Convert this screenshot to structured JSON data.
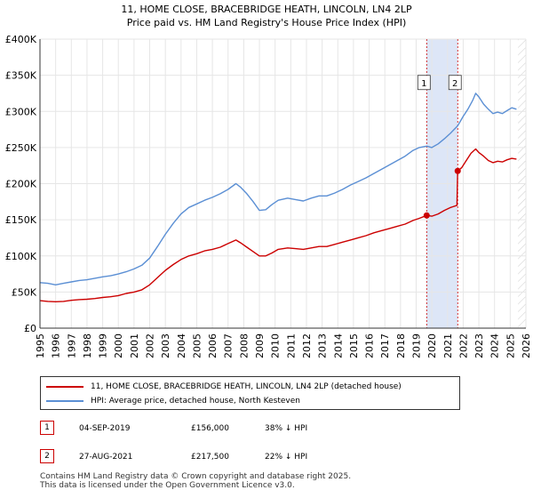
{
  "title_line1": "11, HOME CLOSE, BRACEBRIDGE HEATH, LINCOLN, LN4 2LP",
  "title_line2": "Price paid vs. HM Land Registry's House Price Index (HPI)",
  "colors": {
    "property": "#cc0000",
    "hpi": "#5b8fd4",
    "highlight": "#dde6f7",
    "marker_border": "#cc0000"
  },
  "chart_data": {
    "type": "line",
    "xlim": [
      1995,
      2026
    ],
    "ylim": [
      0,
      400000
    ],
    "y_ticks": [
      0,
      50000,
      100000,
      150000,
      200000,
      250000,
      300000,
      350000,
      400000
    ],
    "y_tick_labels": [
      "£0",
      "£50K",
      "£100K",
      "£150K",
      "£200K",
      "£250K",
      "£300K",
      "£350K",
      "£400K"
    ],
    "x_ticks": [
      1995,
      1996,
      1997,
      1998,
      1999,
      2000,
      2001,
      2002,
      2003,
      2004,
      2005,
      2006,
      2007,
      2008,
      2009,
      2010,
      2011,
      2012,
      2013,
      2014,
      2015,
      2016,
      2017,
      2018,
      2019,
      2020,
      2021,
      2022,
      2023,
      2024,
      2025,
      2026
    ],
    "x_tick_labels": [
      "1995",
      "1996",
      "1997",
      "1998",
      "1999",
      "2000",
      "2001",
      "2002",
      "2003",
      "2004",
      "2005",
      "2006",
      "2007",
      "2008",
      "2009",
      "2010",
      "2011",
      "2012",
      "2013",
      "2014",
      "2015",
      "2016",
      "2017",
      "2018",
      "2019",
      "2020",
      "2021",
      "2022",
      "2023",
      "2024",
      "2025",
      "2026"
    ],
    "highlight_range": [
      2019.67,
      2021.65
    ],
    "series": [
      {
        "name": "11, HOME CLOSE, BRACEBRIDGE HEATH, LINCOLN, LN4 2LP (detached house)",
        "color": "#cc0000",
        "points": [
          [
            1995.0,
            38000
          ],
          [
            1995.5,
            37000
          ],
          [
            1996.0,
            36500
          ],
          [
            1996.5,
            37000
          ],
          [
            1997.0,
            38500
          ],
          [
            1997.5,
            39500
          ],
          [
            1998.0,
            40000
          ],
          [
            1998.5,
            41000
          ],
          [
            1999.0,
            42500
          ],
          [
            1999.5,
            43500
          ],
          [
            2000.0,
            45000
          ],
          [
            2000.5,
            48000
          ],
          [
            2001.0,
            50000
          ],
          [
            2001.5,
            53000
          ],
          [
            2002.0,
            60000
          ],
          [
            2002.5,
            70000
          ],
          [
            2003.0,
            80000
          ],
          [
            2003.5,
            88000
          ],
          [
            2004.0,
            95000
          ],
          [
            2004.5,
            100000
          ],
          [
            2005.0,
            103000
          ],
          [
            2005.5,
            107000
          ],
          [
            2006.0,
            109000
          ],
          [
            2006.5,
            112000
          ],
          [
            2007.0,
            117000
          ],
          [
            2007.5,
            122000
          ],
          [
            2007.8,
            118000
          ],
          [
            2008.2,
            112000
          ],
          [
            2008.6,
            106000
          ],
          [
            2009.0,
            100000
          ],
          [
            2009.4,
            100000
          ],
          [
            2009.8,
            104000
          ],
          [
            2010.2,
            109000
          ],
          [
            2010.8,
            111000
          ],
          [
            2011.3,
            110000
          ],
          [
            2011.8,
            109000
          ],
          [
            2012.3,
            111000
          ],
          [
            2012.8,
            113000
          ],
          [
            2013.3,
            113000
          ],
          [
            2013.8,
            116000
          ],
          [
            2014.3,
            119000
          ],
          [
            2014.8,
            122000
          ],
          [
            2015.3,
            125000
          ],
          [
            2015.8,
            128000
          ],
          [
            2016.3,
            132000
          ],
          [
            2016.8,
            135000
          ],
          [
            2017.3,
            138000
          ],
          [
            2017.8,
            141000
          ],
          [
            2018.3,
            144000
          ],
          [
            2018.8,
            149000
          ],
          [
            2019.2,
            152000
          ],
          [
            2019.67,
            156000
          ],
          [
            2020.0,
            155000
          ],
          [
            2020.4,
            158000
          ],
          [
            2020.8,
            163000
          ],
          [
            2021.2,
            167000
          ],
          [
            2021.6,
            170000
          ],
          [
            2021.65,
            217500
          ],
          [
            2021.9,
            222000
          ],
          [
            2022.2,
            232000
          ],
          [
            2022.5,
            242000
          ],
          [
            2022.8,
            248000
          ],
          [
            2023.0,
            243000
          ],
          [
            2023.3,
            238000
          ],
          [
            2023.6,
            232000
          ],
          [
            2023.9,
            229000
          ],
          [
            2024.2,
            231000
          ],
          [
            2024.5,
            230000
          ],
          [
            2024.8,
            233000
          ],
          [
            2025.1,
            235000
          ],
          [
            2025.4,
            234000
          ]
        ]
      },
      {
        "name": "HPI: Average price, detached house, North Kesteven",
        "color": "#5b8fd4",
        "points": [
          [
            1995.0,
            63000
          ],
          [
            1995.5,
            62000
          ],
          [
            1996.0,
            60000
          ],
          [
            1996.5,
            62000
          ],
          [
            1997.0,
            64000
          ],
          [
            1997.5,
            66000
          ],
          [
            1998.0,
            67000
          ],
          [
            1998.5,
            69000
          ],
          [
            1999.0,
            71000
          ],
          [
            1999.5,
            72500
          ],
          [
            2000.0,
            75000
          ],
          [
            2000.5,
            78000
          ],
          [
            2001.0,
            82000
          ],
          [
            2001.5,
            87000
          ],
          [
            2002.0,
            97000
          ],
          [
            2002.5,
            113000
          ],
          [
            2003.0,
            130000
          ],
          [
            2003.5,
            145000
          ],
          [
            2004.0,
            158000
          ],
          [
            2004.5,
            167000
          ],
          [
            2005.0,
            172000
          ],
          [
            2005.5,
            177000
          ],
          [
            2006.0,
            181000
          ],
          [
            2006.5,
            186000
          ],
          [
            2007.0,
            192000
          ],
          [
            2007.5,
            200000
          ],
          [
            2007.8,
            195000
          ],
          [
            2008.2,
            186000
          ],
          [
            2008.6,
            175000
          ],
          [
            2009.0,
            163000
          ],
          [
            2009.4,
            164000
          ],
          [
            2009.8,
            171000
          ],
          [
            2010.2,
            177000
          ],
          [
            2010.8,
            180000
          ],
          [
            2011.3,
            178000
          ],
          [
            2011.8,
            176000
          ],
          [
            2012.3,
            180000
          ],
          [
            2012.8,
            183000
          ],
          [
            2013.3,
            183000
          ],
          [
            2013.8,
            187000
          ],
          [
            2014.3,
            192000
          ],
          [
            2014.8,
            198000
          ],
          [
            2015.3,
            203000
          ],
          [
            2015.8,
            208000
          ],
          [
            2016.3,
            214000
          ],
          [
            2016.8,
            220000
          ],
          [
            2017.3,
            226000
          ],
          [
            2017.8,
            232000
          ],
          [
            2018.3,
            238000
          ],
          [
            2018.8,
            246000
          ],
          [
            2019.2,
            250000
          ],
          [
            2019.67,
            252000
          ],
          [
            2020.0,
            250000
          ],
          [
            2020.4,
            255000
          ],
          [
            2020.8,
            262000
          ],
          [
            2021.2,
            270000
          ],
          [
            2021.65,
            280000
          ],
          [
            2022.0,
            293000
          ],
          [
            2022.3,
            303000
          ],
          [
            2022.6,
            315000
          ],
          [
            2022.8,
            325000
          ],
          [
            2023.0,
            320000
          ],
          [
            2023.3,
            310000
          ],
          [
            2023.6,
            303000
          ],
          [
            2023.9,
            297000
          ],
          [
            2024.2,
            299000
          ],
          [
            2024.5,
            297000
          ],
          [
            2024.8,
            301000
          ],
          [
            2025.1,
            305000
          ],
          [
            2025.4,
            303000
          ]
        ]
      }
    ],
    "markers": [
      {
        "label": "1",
        "x": 2019.67,
        "y": 156000,
        "box_y": 340000
      },
      {
        "label": "2",
        "x": 2021.65,
        "y": 217500,
        "box_y": 340000
      }
    ]
  },
  "legend": {
    "property_label": "11, HOME CLOSE, BRACEBRIDGE HEATH, LINCOLN, LN4 2LP (detached house)",
    "hpi_label": "HPI: Average price, detached house, North Kesteven"
  },
  "sales": [
    {
      "num": "1",
      "date": "04-SEP-2019",
      "price": "£156,000",
      "hpi": "38% ↓ HPI"
    },
    {
      "num": "2",
      "date": "27-AUG-2021",
      "price": "£217,500",
      "hpi": "22% ↓ HPI"
    }
  ],
  "footer_line1": "Contains HM Land Registry data © Crown copyright and database right 2025.",
  "footer_line2": "This data is licensed under the Open Government Licence v3.0."
}
